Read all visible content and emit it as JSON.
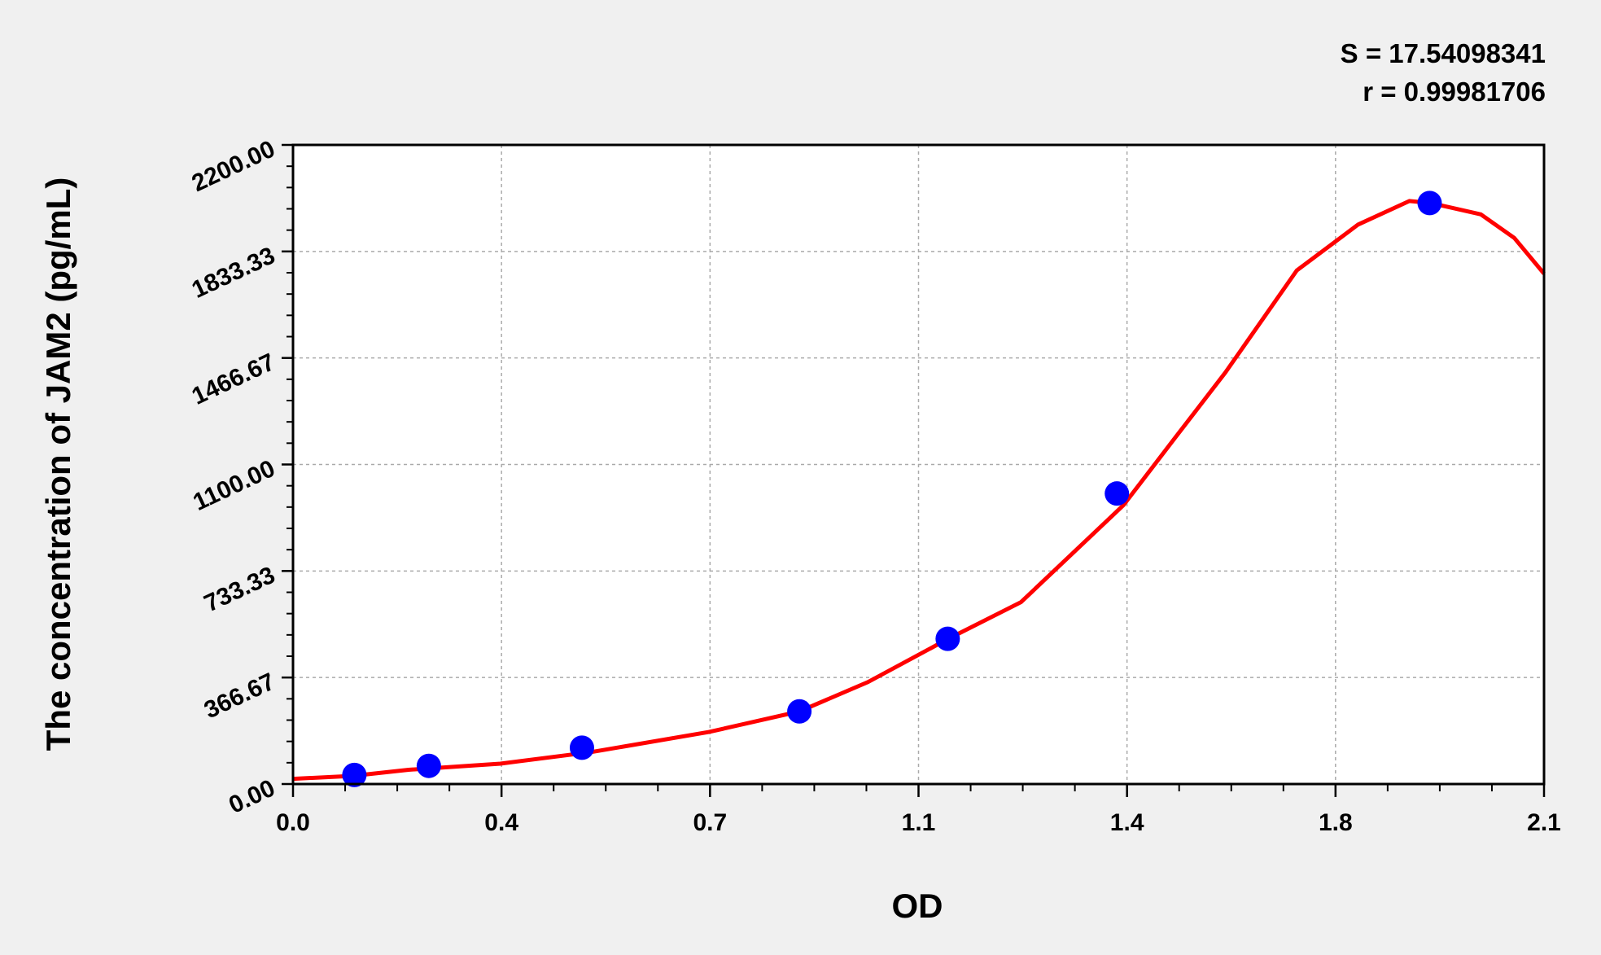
{
  "chart_data": {
    "type": "scatter",
    "xlabel": "OD",
    "ylabel": "The concentration of JAM2 (pg/mL)",
    "xlim": [
      0,
      2.1
    ],
    "ylim": [
      0,
      2200
    ],
    "x_tick_values": [
      0,
      0.35,
      0.7,
      1.05,
      1.4,
      1.75,
      2.1
    ],
    "x_tick_labels": [
      "0.0",
      "0.4",
      "0.7",
      "1.1",
      "1.4",
      "1.8",
      "2.1"
    ],
    "y_tick_values": [
      0,
      366.67,
      733.33,
      1100,
      1466.67,
      1833.33,
      2200
    ],
    "y_tick_labels": [
      "0.00",
      "366.67",
      "733.33",
      "1100.00",
      "1466.67",
      "1833.33",
      "2200.00"
    ],
    "grid": true,
    "annotations": [
      "S = 17.54098341",
      "r = 0.99981706"
    ],
    "points": {
      "color": "#0000ff",
      "x": [
        0.103,
        0.228,
        0.485,
        0.85,
        1.099,
        1.383,
        1.908
      ],
      "y": [
        31.25,
        62.5,
        125,
        250,
        500,
        1000,
        2000
      ]
    },
    "fit_curve": {
      "color": "#ff0000",
      "x": [
        0,
        0.1,
        0.194,
        0.348,
        0.5,
        0.698,
        0.85,
        0.965,
        1.1,
        1.222,
        1.394,
        1.48,
        1.565,
        1.685,
        1.788,
        1.874,
        1.91,
        1.994,
        2.05,
        2.1
      ],
      "y": [
        18,
        28,
        49,
        70,
        110,
        179,
        250,
        351,
        500,
        626,
        960,
        1190,
        1416,
        1768,
        1926,
        2007,
        2000,
        1961,
        1880,
        1757
      ]
    }
  }
}
